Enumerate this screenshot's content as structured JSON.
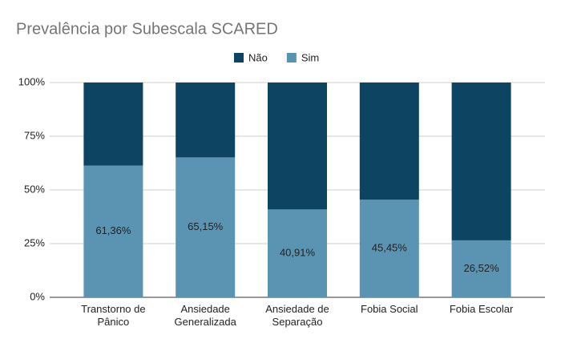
{
  "chart_data": {
    "type": "stacked_bar",
    "title": "Prevalência por Subescala SCARED",
    "categories": [
      "Transtorno de Pânico",
      "Ansiedade Generalizada",
      "Ansiedade de Separação",
      "Fobia Social",
      "Fobia Escolar"
    ],
    "series": [
      {
        "name": "Sim",
        "color": "#5b94b3",
        "values": [
          61.36,
          65.15,
          40.91,
          45.45,
          26.52
        ],
        "value_labels": [
          "61,36%",
          "65,15%",
          "40,91%",
          "45,45%",
          "26,52%"
        ]
      },
      {
        "name": "Não",
        "color": "#0c4462",
        "values": [
          38.64,
          34.85,
          59.09,
          54.55,
          73.48
        ]
      }
    ],
    "legend_order": [
      "Não",
      "Sim"
    ],
    "ylim": [
      0,
      100
    ],
    "yticks": [
      {
        "value": 0,
        "label": "0%"
      },
      {
        "value": 25,
        "label": "25%"
      },
      {
        "value": 50,
        "label": "50%"
      },
      {
        "value": 75,
        "label": "75%"
      },
      {
        "value": 100,
        "label": "100%"
      }
    ],
    "grid": true
  }
}
